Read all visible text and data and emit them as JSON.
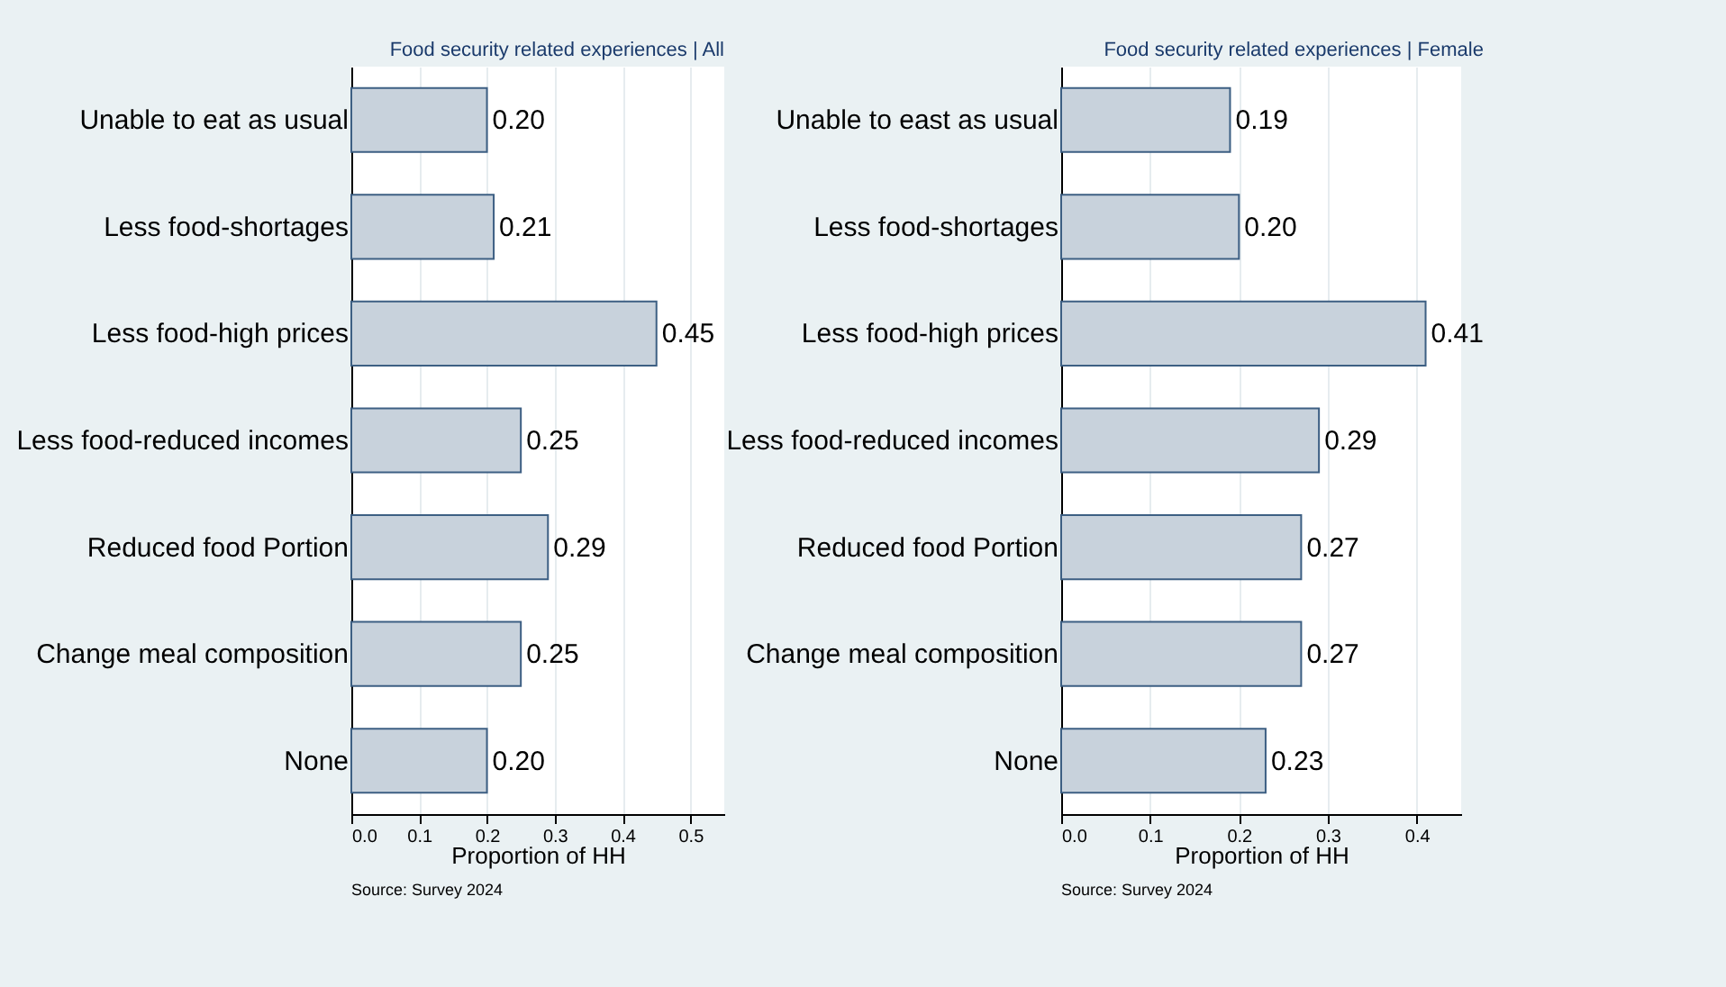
{
  "chart_data": [
    {
      "type": "bar",
      "orientation": "horizontal",
      "title": "Food security related experiences | All",
      "xlabel": "Proportion of HH",
      "categories": [
        "Unable to eat as usual",
        "Less food-shortages",
        "Less food-high prices",
        "Less food-reduced incomes",
        "Reduced food Portion",
        "Change meal composition",
        "None"
      ],
      "values": [
        0.2,
        0.21,
        0.45,
        0.25,
        0.29,
        0.25,
        0.2
      ],
      "value_labels": [
        "0.20",
        "0.21",
        "0.45",
        "0.25",
        "0.29",
        "0.25",
        "0.20"
      ],
      "color": "#c8d2dc",
      "xlim": [
        0,
        0.55
      ],
      "xticks": [
        {
          "value": 0,
          "label": "0.0"
        },
        {
          "value": 0.1,
          "label": "0.1"
        },
        {
          "value": 0.2,
          "label": "0.2"
        },
        {
          "value": 0.3,
          "label": "0.3"
        },
        {
          "value": 0.4,
          "label": "0.4"
        },
        {
          "value": 0.5,
          "label": "0.5"
        }
      ],
      "grid": "x",
      "annotations": [
        "Source: Survey 2024"
      ]
    },
    {
      "type": "bar",
      "orientation": "horizontal",
      "title": "Food security related experiences | Female",
      "xlabel": "Proportion of HH",
      "categories": [
        "Unable to east as usual",
        "Less food-shortages",
        "Less food-high prices",
        "Less food-reduced incomes",
        "Reduced food Portion",
        "Change meal composition",
        "None"
      ],
      "values": [
        0.19,
        0.2,
        0.41,
        0.29,
        0.27,
        0.27,
        0.23
      ],
      "value_labels": [
        "0.19",
        "0.20",
        "0.41",
        "0.29",
        "0.27",
        "0.27",
        "0.23"
      ],
      "color": "#c8d2dc",
      "xlim": [
        0,
        0.45
      ],
      "xticks": [
        {
          "value": 0,
          "label": "0.0"
        },
        {
          "value": 0.1,
          "label": "0.1"
        },
        {
          "value": 0.2,
          "label": "0.2"
        },
        {
          "value": 0.3,
          "label": "0.3"
        },
        {
          "value": 0.4,
          "label": "0.4"
        }
      ],
      "grid": "x",
      "annotations": [
        "Source: Survey 2024"
      ]
    }
  ]
}
